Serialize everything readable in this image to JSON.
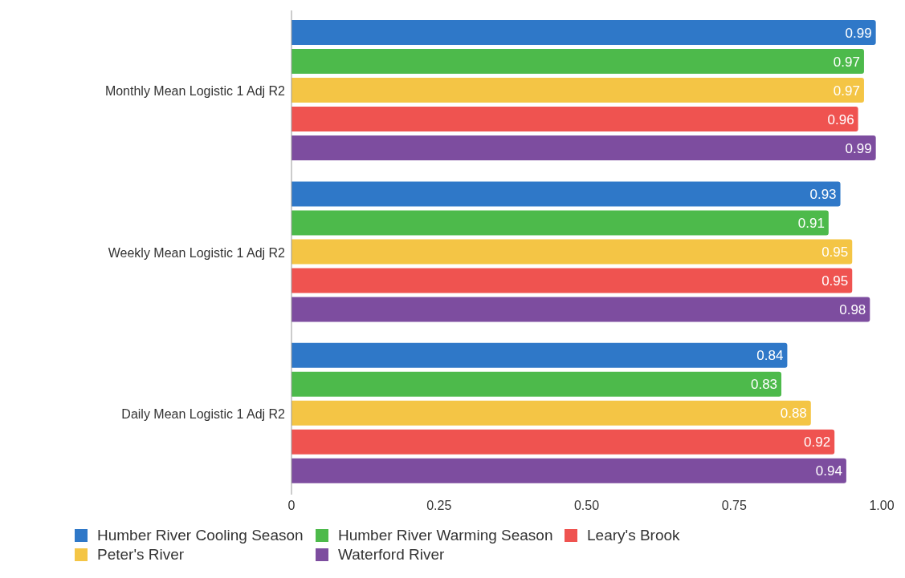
{
  "chart_data": {
    "type": "bar",
    "orientation": "horizontal",
    "categories": [
      "Monthly Mean Logistic 1 Adj R2",
      "Weekly Mean Logistic 1 Adj R2",
      "Daily Mean Logistic 1 Adj R2"
    ],
    "series": [
      {
        "name": "Humber River Cooling Season",
        "color": "#2f78c8",
        "values": [
          0.99,
          0.93,
          0.84
        ]
      },
      {
        "name": "Humber River Warming Season",
        "color": "#4dba4b",
        "values": [
          0.97,
          0.91,
          0.83
        ]
      },
      {
        "name": "Peter's River",
        "color": "#f4c545",
        "values": [
          0.97,
          0.95,
          0.88
        ]
      },
      {
        "name": "Leary's Brook",
        "color": "#ef5350",
        "values": [
          0.96,
          0.95,
          0.92
        ]
      },
      {
        "name": "Waterford River",
        "color": "#7d4d9f",
        "values": [
          0.99,
          0.98,
          0.94
        ]
      }
    ],
    "xlim": [
      0,
      1
    ],
    "xticks": [
      0,
      {
        "value": 0.25,
        "label": "0.25"
      },
      {
        "value": 0.5,
        "label": "0.50"
      },
      {
        "value": 0.75,
        "label": "0.75"
      },
      {
        "value": 1,
        "label": "1.00"
      }
    ],
    "data_labels": true,
    "legend": "bottom",
    "grid": false
  }
}
